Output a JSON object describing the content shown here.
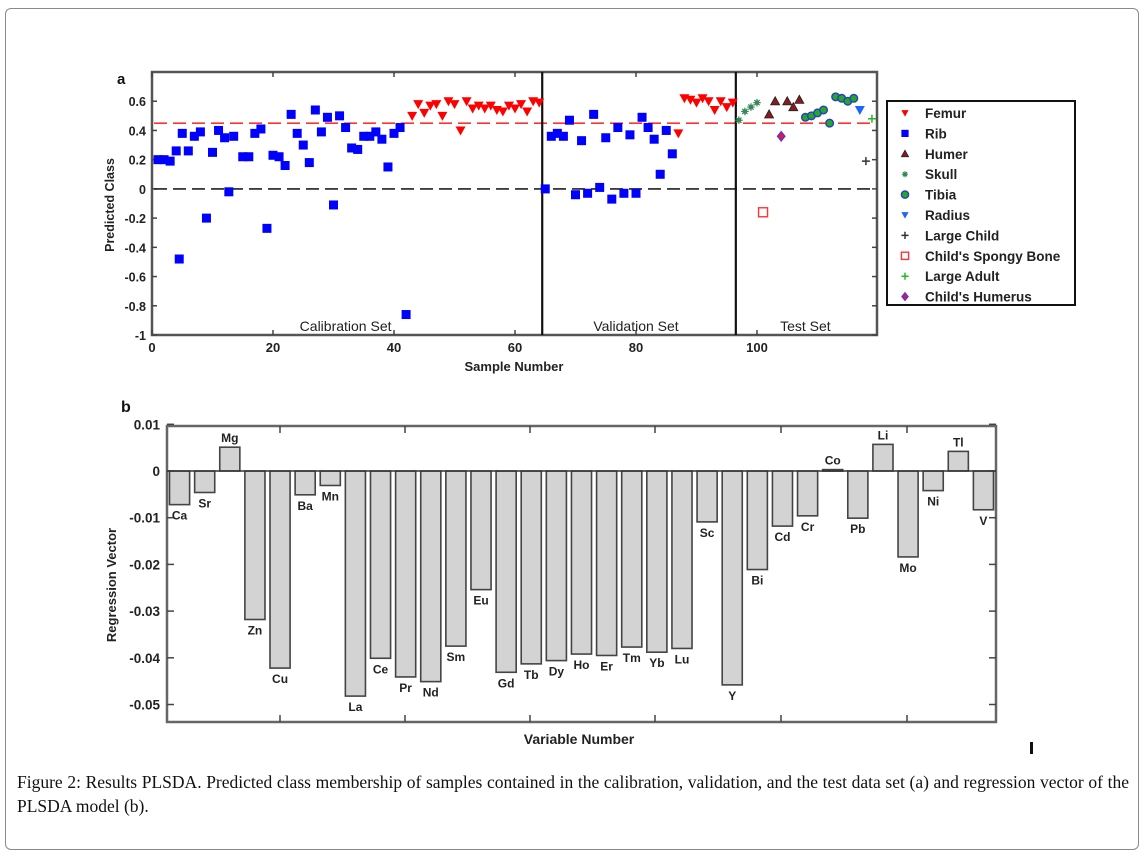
{
  "figure": {
    "caption": "Figure 2: Results PLSDA. Predicted class membership of samples contained in the calibration, validation, and the test data set (a) and regression vector of the PLSDA model (b).",
    "panel_a_label": "a",
    "panel_b_label": "b"
  },
  "chart_data": [
    {
      "type": "scatter",
      "panel": "a",
      "title": "",
      "xlabel": "Sample Number",
      "ylabel": "Predicted Class",
      "xlim": [
        0,
        119
      ],
      "ylim": [
        -1,
        0.8
      ],
      "xticks": [
        0,
        20,
        40,
        60,
        80,
        100
      ],
      "yticks": [
        -1,
        -0.8,
        -0.6,
        -0.4,
        -0.2,
        0,
        0.2,
        0.4,
        0.6
      ],
      "ytick_labels": [
        "-1",
        "-0.8",
        "-0.6",
        "-0.4",
        "-0.2",
        "0",
        "0.2",
        "0.4",
        "0.6"
      ],
      "grid": false,
      "legend_position": "right-outside",
      "threshold_lines": [
        {
          "y": 0.45,
          "color": "#ff3333",
          "style": "dashed",
          "label": "class threshold"
        },
        {
          "y": 0,
          "color": "#222222",
          "style": "dashed",
          "label": "zero"
        }
      ],
      "separators": [
        {
          "x": 64.5
        },
        {
          "x": 96.5
        }
      ],
      "region_labels": [
        {
          "text": "Calibration Set",
          "x": 32
        },
        {
          "text": "Validation Set",
          "x": 80
        },
        {
          "text": "Test Set",
          "x": 108
        }
      ],
      "legend": [
        {
          "name": "Femur",
          "marker": "triangle-down",
          "color": "#ff0000"
        },
        {
          "name": "Rib",
          "marker": "square",
          "color": "#0000ff"
        },
        {
          "name": "Humer",
          "marker": "triangle-up",
          "color": "#8b1a1a"
        },
        {
          "name": "Skull",
          "marker": "star",
          "color": "#2e8b57"
        },
        {
          "name": "Tibia",
          "marker": "circle",
          "color": "#22aa22"
        },
        {
          "name": "Radius",
          "marker": "triangle-down",
          "color": "#1e64ff"
        },
        {
          "name": "Large Child",
          "marker": "plus",
          "color": "#333333"
        },
        {
          "name": "Child's Spongy Bone",
          "marker": "square-open",
          "color": "#ff3333"
        },
        {
          "name": "Large Adult",
          "marker": "plus",
          "color": "#22bb22"
        },
        {
          "name": "Child's Humerus",
          "marker": "diamond",
          "color": "#6a2bd8"
        }
      ],
      "series": [
        {
          "name": "Rib",
          "points": [
            [
              1,
              0.2
            ],
            [
              2,
              0.2
            ],
            [
              3,
              0.19
            ],
            [
              4,
              0.26
            ],
            [
              4.5,
              -0.48
            ],
            [
              5,
              0.38
            ],
            [
              6,
              0.26
            ],
            [
              7,
              0.36
            ],
            [
              8,
              0.39
            ],
            [
              9,
              -0.2
            ],
            [
              10,
              0.25
            ],
            [
              11,
              0.4
            ],
            [
              12,
              0.35
            ],
            [
              12.7,
              -0.02
            ],
            [
              13.5,
              0.36
            ],
            [
              15,
              0.22
            ],
            [
              16,
              0.22
            ],
            [
              17,
              0.38
            ],
            [
              18,
              0.41
            ],
            [
              19,
              -0.27
            ],
            [
              20,
              0.23
            ],
            [
              21,
              0.22
            ],
            [
              22,
              0.16
            ],
            [
              23,
              0.51
            ],
            [
              24,
              0.38
            ],
            [
              25,
              0.3
            ],
            [
              26,
              0.18
            ],
            [
              27,
              0.54
            ],
            [
              28,
              0.39
            ],
            [
              29,
              0.49
            ],
            [
              30,
              -0.11
            ],
            [
              31,
              0.5
            ],
            [
              32,
              0.42
            ],
            [
              33,
              0.28
            ],
            [
              34,
              0.27
            ],
            [
              35,
              0.36
            ],
            [
              36,
              0.36
            ],
            [
              37,
              0.39
            ],
            [
              38,
              0.34
            ],
            [
              39,
              0.15
            ],
            [
              40,
              0.38
            ],
            [
              41,
              0.42
            ],
            [
              42,
              -0.86
            ],
            [
              65,
              0.0
            ],
            [
              66,
              0.36
            ],
            [
              67,
              0.38
            ],
            [
              68,
              0.36
            ],
            [
              69,
              0.47
            ],
            [
              70,
              -0.04
            ],
            [
              71,
              0.33
            ],
            [
              72,
              -0.03
            ],
            [
              73,
              0.51
            ],
            [
              74,
              0.01
            ],
            [
              75,
              0.35
            ],
            [
              76,
              -0.07
            ],
            [
              77,
              0.42
            ],
            [
              78,
              -0.03
            ],
            [
              79,
              0.37
            ],
            [
              80,
              -0.03
            ],
            [
              81,
              0.49
            ],
            [
              82,
              0.42
            ],
            [
              83,
              0.34
            ],
            [
              84,
              0.1
            ],
            [
              85,
              0.4
            ],
            [
              86,
              0.24
            ]
          ]
        },
        {
          "name": "Femur",
          "points": [
            [
              43,
              0.5
            ],
            [
              44,
              0.58
            ],
            [
              45,
              0.52
            ],
            [
              46,
              0.57
            ],
            [
              47,
              0.58
            ],
            [
              48,
              0.5
            ],
            [
              49,
              0.6
            ],
            [
              50,
              0.58
            ],
            [
              51,
              0.4
            ],
            [
              52,
              0.6
            ],
            [
              53,
              0.55
            ],
            [
              54,
              0.57
            ],
            [
              55,
              0.55
            ],
            [
              56,
              0.57
            ],
            [
              57,
              0.54
            ],
            [
              58,
              0.53
            ],
            [
              59,
              0.57
            ],
            [
              60,
              0.55
            ],
            [
              61,
              0.58
            ],
            [
              62,
              0.53
            ],
            [
              63,
              0.6
            ],
            [
              64,
              0.59
            ],
            [
              87,
              0.38
            ],
            [
              88,
              0.62
            ],
            [
              89,
              0.61
            ],
            [
              90,
              0.59
            ],
            [
              91,
              0.62
            ],
            [
              92,
              0.6
            ],
            [
              93,
              0.54
            ],
            [
              94,
              0.6
            ],
            [
              95,
              0.56
            ],
            [
              96,
              0.59
            ]
          ]
        },
        {
          "name": "Skull",
          "points": [
            [
              97,
              0.47
            ],
            [
              98,
              0.53
            ],
            [
              99,
              0.56
            ],
            [
              100,
              0.59
            ]
          ]
        },
        {
          "name": "Humer",
          "points": [
            [
              102,
              0.51
            ],
            [
              103,
              0.6
            ],
            [
              105,
              0.6
            ],
            [
              106,
              0.56
            ],
            [
              107,
              0.61
            ]
          ]
        },
        {
          "name": "Child's Humerus",
          "points": [
            [
              104,
              0.36
            ]
          ]
        },
        {
          "name": "Child's Spongy Bone",
          "points": [
            [
              101,
              -0.16
            ]
          ]
        },
        {
          "name": "Tibia",
          "points": [
            [
              108,
              0.49
            ],
            [
              109,
              0.5
            ],
            [
              110,
              0.52
            ],
            [
              111,
              0.54
            ],
            [
              112,
              0.45
            ],
            [
              113,
              0.63
            ],
            [
              114,
              0.62
            ],
            [
              115,
              0.6
            ],
            [
              116,
              0.62
            ]
          ]
        },
        {
          "name": "Radius",
          "points": [
            [
              117,
              0.54
            ]
          ]
        },
        {
          "name": "Large Child",
          "points": [
            [
              118,
              0.19
            ]
          ]
        },
        {
          "name": "Large Adult",
          "points": [
            [
              119,
              0.48
            ]
          ]
        }
      ]
    },
    {
      "type": "bar",
      "panel": "b",
      "title": "",
      "xlabel": "Variable Number",
      "ylabel": "Regression Vector",
      "ylim": [
        -0.053,
        0.01
      ],
      "yticks": [
        0.01,
        0,
        -0.01,
        -0.02,
        -0.03,
        -0.04,
        -0.05
      ],
      "ytick_labels": [
        "0.01",
        "0",
        "-0.01",
        "-0.02",
        "-0.03",
        "-0.04",
        "-0.05"
      ],
      "grid": false,
      "categories": [
        "Ca",
        "Sr",
        "Mg",
        "Zn",
        "Cu",
        "Ba",
        "Mn",
        "La",
        "Ce",
        "Pr",
        "Nd",
        "Sm",
        "Eu",
        "Gd",
        "Tb",
        "Dy",
        "Ho",
        "Er",
        "Tm",
        "Yb",
        "Lu",
        "Sc",
        "Y",
        "Bi",
        "Cd",
        "Cr",
        "Co",
        "Pb",
        "Li",
        "Mo",
        "Ni",
        "Tl",
        "V"
      ],
      "values": [
        -0.0072,
        -0.0046,
        0.0051,
        -0.0318,
        -0.0422,
        -0.0051,
        -0.0031,
        -0.0482,
        -0.0401,
        -0.0441,
        -0.0451,
        -0.0375,
        -0.0254,
        -0.0431,
        -0.0413,
        -0.0406,
        -0.0392,
        -0.0395,
        -0.0377,
        -0.0388,
        -0.038,
        -0.0109,
        -0.0458,
        -0.0211,
        -0.0118,
        -0.0096,
        0.0003,
        -0.0101,
        0.0057,
        -0.0184,
        -0.0042,
        0.0042,
        -0.0083
      ]
    }
  ]
}
